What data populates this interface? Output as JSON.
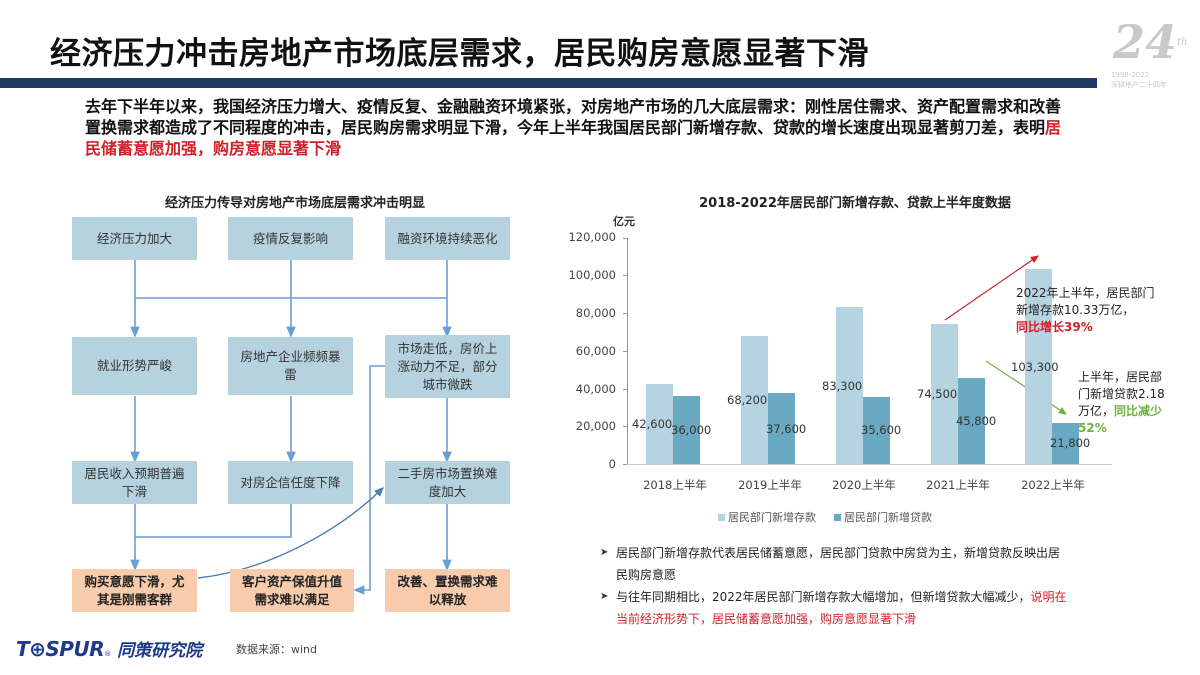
{
  "header": {
    "title": "经济压力冲击房地产市场底层需求，居民购房意愿显著下滑",
    "badge_number": "24",
    "badge_suffix": "th",
    "badge_years": "1998-2022",
    "badge_subtitle": "深耕地产二十四年",
    "bar_color": "#223a63"
  },
  "intro": {
    "text_plain": "去年下半年以来，我国经济压力增大、疫情反复、金融融资环境紧张，对房地产市场的几大底层需求：刚性居住需求、资产配置需求和改善置换需求都造成了不同程度的冲击，居民购房需求明显下滑，今年上半年我国居民部门新增存款、贷款的增长速度出现显著剪刀差，表明",
    "text_highlight": "居民储蓄意愿加强，购房意愿显著下滑",
    "highlight_color": "#d0202a"
  },
  "flowchart": {
    "title": "经济压力传导对房地产市场底层需求冲击明显",
    "row1": [
      "经济压力加大",
      "疫情反复影响",
      "融资环境持续恶化"
    ],
    "row2": [
      "就业形势严峻",
      "房地产企业频频暴雷",
      "市场走低，房价上涨动力不足，部分城市微跌"
    ],
    "row3": [
      "居民收入预期普遍下滑",
      "对房企信任度下降",
      "二手房市场置换难度加大"
    ],
    "row4": [
      "购买意愿下滑，尤其是刚需客群",
      "客户资产保值升值需求难以满足",
      "改善、置换需求难以释放"
    ],
    "colors": {
      "blue_box": "#b5d2de",
      "orange_box": "#f7cbac",
      "line": "#6a9fd4"
    }
  },
  "chart_data": {
    "type": "bar",
    "title": "2018-2022年居民部门新增存款、贷款上半年度数据",
    "ylabel": "亿元",
    "xlabel": "",
    "ylim": [
      0,
      120000
    ],
    "yticks": [
      "0",
      "20,000",
      "40,000",
      "60,000",
      "80,000",
      "100,000",
      "120,000"
    ],
    "categories": [
      "2018上半年",
      "2019上半年",
      "2020上半年",
      "2021上半年",
      "2022上半年"
    ],
    "series": [
      {
        "name": "居民部门新增存款",
        "color": "#b5d3e0",
        "values": [
          42600,
          68200,
          83300,
          74500,
          103300
        ],
        "labels": [
          "42,600",
          "68,200",
          "83,300",
          "74,500",
          "103,300"
        ]
      },
      {
        "name": "居民部门新增贷款",
        "color": "#6aa9c2",
        "values": [
          36000,
          37600,
          35600,
          45800,
          21800
        ],
        "labels": [
          "36,000",
          "37,600",
          "35,600",
          "45,800",
          "21,800"
        ]
      }
    ],
    "grid": false,
    "legend_position": "bottom",
    "annotations": [
      {
        "text": "2022年上半年，居民部门新增存款10.33万亿，",
        "highlight": "同比增长39%",
        "color": "#d0202a"
      },
      {
        "text": "上半年，居民部门新增贷款2.18万亿，",
        "highlight": "同比减少52%",
        "color": "#6cb43f"
      }
    ]
  },
  "bullets": [
    {
      "text": "居民部门新增存款代表居民储蓄意愿，居民部门贷款中房贷为主，新增贷款反映出居民购房意愿",
      "highlight": ""
    },
    {
      "text": "与往年同期相比，2022年居民部门新增存款大幅增加，但新增贷款大幅减少，",
      "highlight": "说明在当前经济形势下，居民储蓄意愿加强，购房意愿显著下滑"
    }
  ],
  "footer": {
    "logo_en": "T⊕SPUR",
    "logo_reg": "®",
    "logo_cn": "同策研究院",
    "source": "数据来源：wind"
  }
}
